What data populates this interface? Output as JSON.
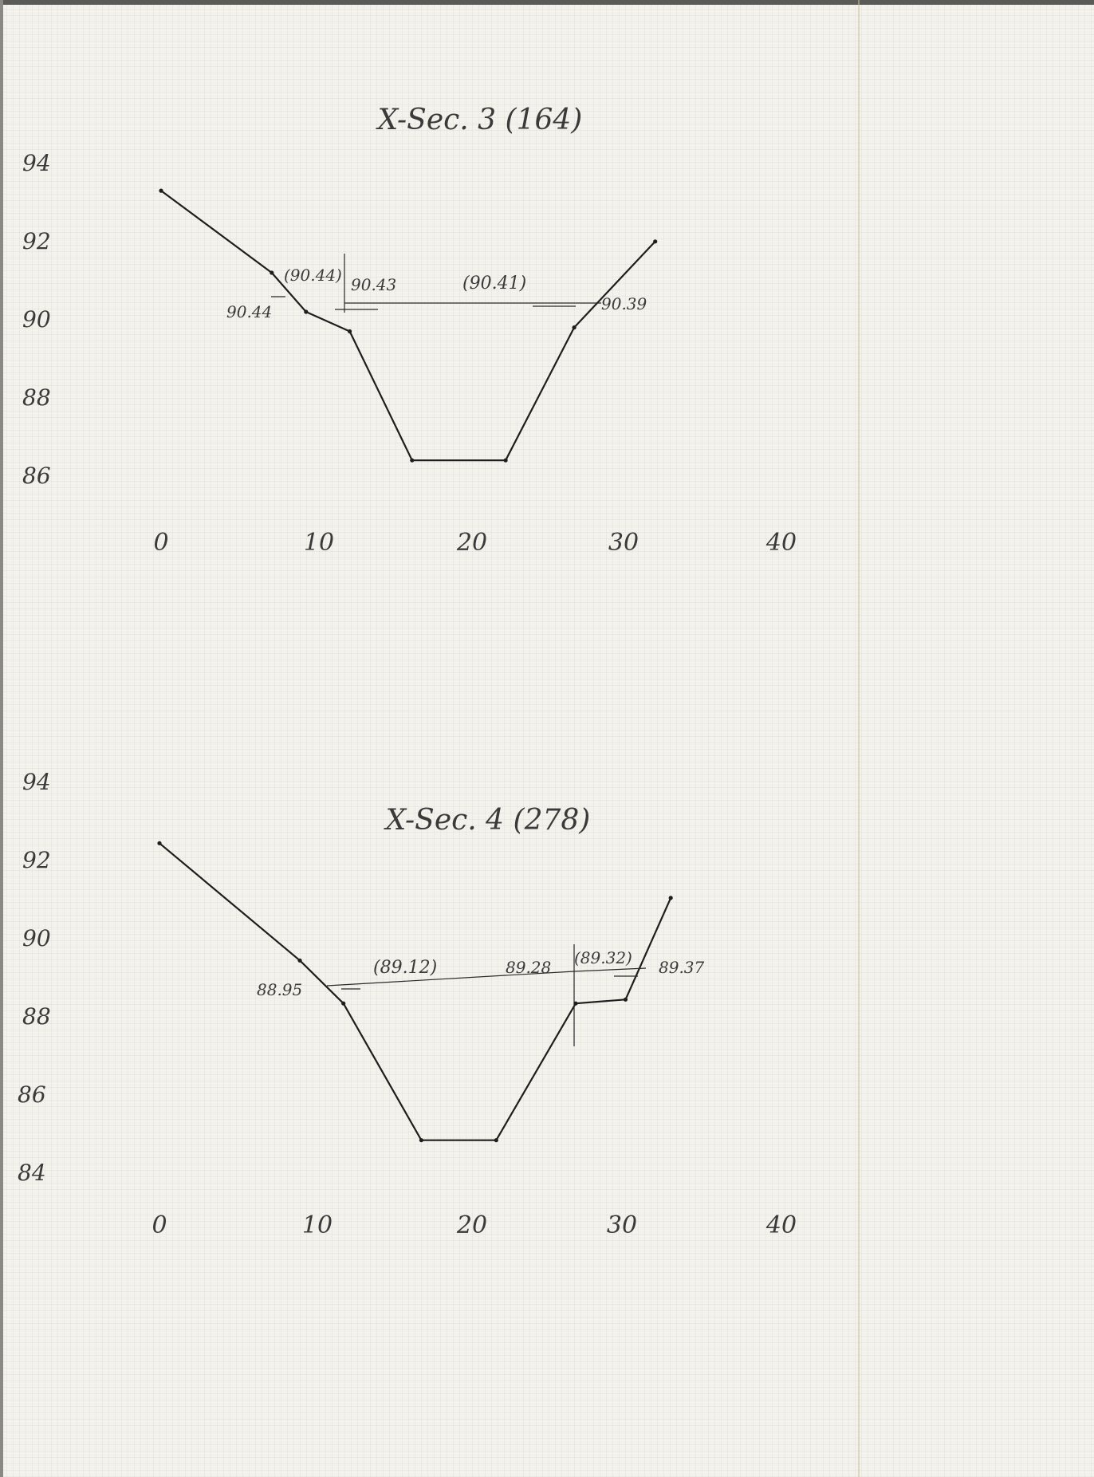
{
  "chart_data": [
    {
      "type": "line",
      "title": "X-Sec. 3 (164)",
      "xlabel": "",
      "ylabel": "",
      "xlim": [
        0,
        40
      ],
      "ylim": [
        86,
        94
      ],
      "x_ticks": [
        "0",
        "10",
        "20",
        "30",
        "40"
      ],
      "y_ticks": [
        "86",
        "88",
        "90",
        "92",
        "94"
      ],
      "grid": true,
      "series": [
        {
          "points": [
            [
              0,
              93.1
            ],
            [
              7.1,
              91.0
            ],
            [
              9.3,
              90.0
            ],
            [
              12.1,
              89.5
            ],
            [
              16.1,
              86.2
            ],
            [
              22.1,
              86.2
            ],
            [
              26.5,
              89.6
            ],
            [
              31.7,
              91.8
            ]
          ]
        }
      ],
      "annotations": [
        "90.44",
        "(90.44)",
        "90.43",
        "(90.41)",
        "90.39"
      ]
    },
    {
      "type": "line",
      "title": "X-Sec. 4 (278)",
      "xlabel": "",
      "ylabel": "",
      "xlim": [
        0,
        40
      ],
      "ylim": [
        84,
        94
      ],
      "x_ticks": [
        "0",
        "10",
        "20",
        "30",
        "40"
      ],
      "y_ticks": [
        "84",
        "86",
        "88",
        "90",
        "92",
        "94"
      ],
      "grid": true,
      "series": [
        {
          "points": [
            [
              0,
              92.3
            ],
            [
              9.0,
              89.3
            ],
            [
              11.8,
              88.2
            ],
            [
              16.8,
              84.7
            ],
            [
              21.6,
              84.7
            ],
            [
              26.7,
              88.2
            ],
            [
              29.9,
              88.3
            ],
            [
              32.8,
              90.9
            ]
          ]
        }
      ],
      "annotations": [
        "88.95",
        "(89.12)",
        "89.28",
        "(89.32)",
        "89.37"
      ]
    }
  ]
}
